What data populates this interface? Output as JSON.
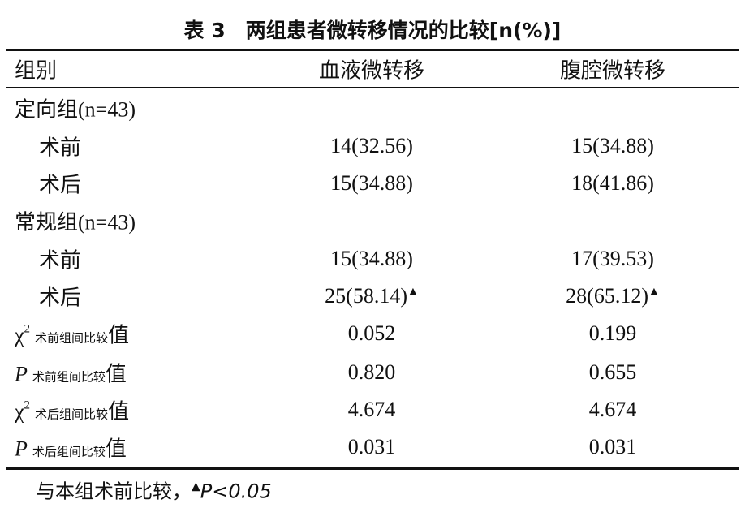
{
  "title": "表 3　两组患者微转移情况的比较[n(%)]",
  "table": {
    "header": [
      "组别",
      "血液微转移",
      "腹腔微转移"
    ],
    "rows": [
      {
        "label": "定向组(n=43)"
      },
      {
        "label": "术前",
        "cells": [
          "14(32.56)",
          "15(34.88)"
        ]
      },
      {
        "label": "术后",
        "cells": [
          "15(34.88)",
          "18(41.86)"
        ]
      },
      {
        "label": "常规组(n=43)"
      },
      {
        "label": "术前",
        "cells": [
          "15(34.88)",
          "17(39.53)"
        ]
      },
      {
        "label": "术后",
        "cells": [
          "25(58.14)",
          "28(65.12)"
        ],
        "marks": [
          "▲",
          "▲"
        ]
      },
      {
        "label": "χ",
        "sup": "2",
        "sub": "术前组间比较",
        "suffix": "值",
        "cells": [
          "0.052",
          "0.199"
        ]
      },
      {
        "label": "P",
        "sub": "术前组间比较",
        "suffix": "值",
        "cells": [
          "0.820",
          "0.655"
        ]
      },
      {
        "label": "χ",
        "sup": "2",
        "sub": "术后组间比较",
        "suffix": "值",
        "cells": [
          "4.674",
          "4.674"
        ]
      },
      {
        "label": "P",
        "sub": "术后组间比较",
        "suffix": "值",
        "cells": [
          "0.031",
          "0.031"
        ]
      }
    ]
  },
  "footnote": {
    "text": "与本组术前比较，",
    "mark": "▲",
    "stat": "P<0.05"
  }
}
